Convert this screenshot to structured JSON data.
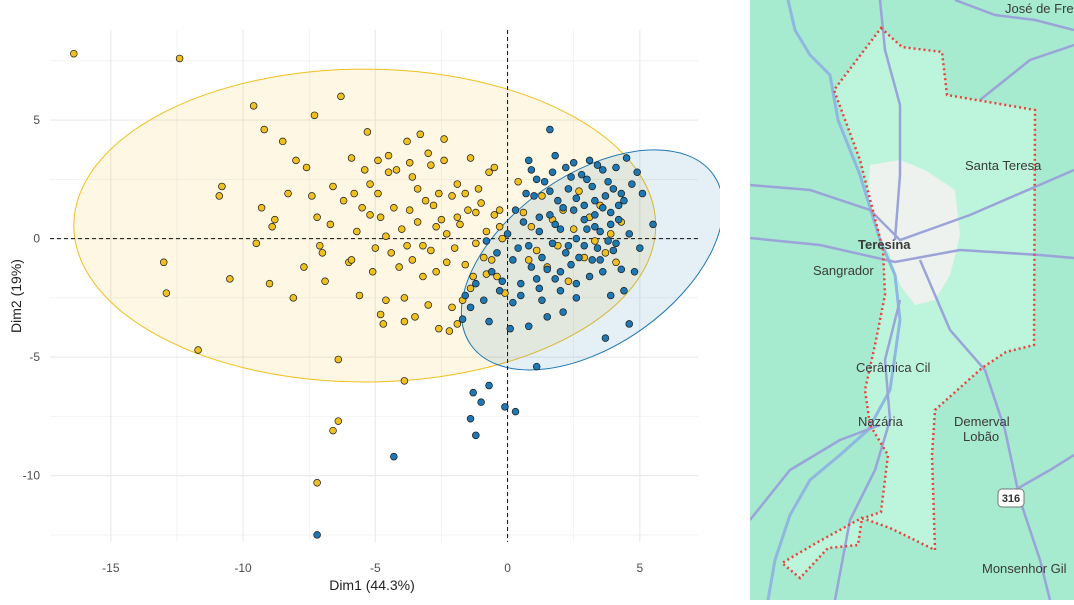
{
  "chart_data": {
    "type": "scatter",
    "xlabel": "Dim1 (44.3%)",
    "ylabel": "Dim2 (19%)",
    "xlim": [
      -17.3,
      7.2
    ],
    "ylim": [
      -12.8,
      8.8
    ],
    "xticks": [
      -15,
      -10,
      -5,
      0,
      5
    ],
    "xtick_labels": [
      "-15",
      "-10",
      "-5",
      "0",
      "5"
    ],
    "yticks": [
      -10,
      -5,
      0,
      5
    ],
    "ytick_labels": [
      "-10",
      "-5",
      "0",
      "5"
    ],
    "grid": true,
    "reference_lines": {
      "x": 0,
      "y": 0,
      "style": "dashed"
    },
    "series": [
      {
        "color": "#F0C020",
        "ellipse": {
          "center": [
            -5.4,
            0.55
          ],
          "rx": 11.0,
          "ry": 6.6,
          "angle": 0
        },
        "points": [
          [
            -16.4,
            7.8
          ],
          [
            -12.4,
            7.6
          ],
          [
            -13.0,
            -1.0
          ],
          [
            -12.9,
            -2.3
          ],
          [
            -11.7,
            -4.7
          ],
          [
            -10.9,
            1.8
          ],
          [
            -10.8,
            2.2
          ],
          [
            -10.5,
            -1.7
          ],
          [
            -9.6,
            5.6
          ],
          [
            -9.2,
            4.6
          ],
          [
            -9.5,
            -0.2
          ],
          [
            -9.3,
            1.3
          ],
          [
            -9.0,
            -1.9
          ],
          [
            -8.9,
            0.5
          ],
          [
            -8.8,
            0.8
          ],
          [
            -8.5,
            4.1
          ],
          [
            -8.3,
            1.9
          ],
          [
            -8.1,
            -2.5
          ],
          [
            -8.0,
            3.3
          ],
          [
            -7.6,
            3.0
          ],
          [
            -7.4,
            1.8
          ],
          [
            -7.2,
            0.9
          ],
          [
            -7.3,
            5.2
          ],
          [
            -7.1,
            -0.3
          ],
          [
            -7.0,
            -0.6
          ],
          [
            -6.9,
            -1.8
          ],
          [
            -6.6,
            2.2
          ],
          [
            -6.3,
            6.0
          ],
          [
            -6.0,
            -1.0
          ],
          [
            -5.9,
            3.4
          ],
          [
            -5.8,
            1.9
          ],
          [
            -5.7,
            0.3
          ],
          [
            -5.6,
            -2.4
          ],
          [
            -5.3,
            4.5
          ],
          [
            -5.2,
            1.0
          ],
          [
            -5.2,
            2.3
          ],
          [
            -5.0,
            -0.4
          ],
          [
            -4.9,
            1.9
          ],
          [
            -4.7,
            -3.6
          ],
          [
            -4.6,
            0.1
          ],
          [
            -4.5,
            2.8
          ],
          [
            -4.4,
            -0.6
          ],
          [
            -4.2,
            2.9
          ],
          [
            -4.1,
            -1.2
          ],
          [
            -3.9,
            -2.5
          ],
          [
            -3.8,
            -0.3
          ],
          [
            -3.7,
            1.2
          ],
          [
            -3.6,
            2.6
          ],
          [
            -3.5,
            -3.3
          ],
          [
            -3.4,
            0.7
          ],
          [
            -3.3,
            4.4
          ],
          [
            -3.2,
            -1.6
          ],
          [
            -3.1,
            1.6
          ],
          [
            -3.0,
            -2.8
          ],
          [
            -3.0,
            3.6
          ],
          [
            -2.9,
            -0.5
          ],
          [
            -2.8,
            1.4
          ],
          [
            -2.6,
            -3.8
          ],
          [
            -2.5,
            0.8
          ],
          [
            -2.4,
            3.3
          ],
          [
            -2.3,
            -1.0
          ],
          [
            -2.2,
            -3.9
          ],
          [
            -2.1,
            1.8
          ],
          [
            -2.0,
            -0.4
          ],
          [
            -1.9,
            2.3
          ],
          [
            -1.8,
            0.6
          ],
          [
            -1.7,
            -2.6
          ],
          [
            -1.6,
            -1.1
          ],
          [
            -1.5,
            1.2
          ],
          [
            -1.4,
            3.4
          ],
          [
            -1.3,
            -1.6
          ],
          [
            -1.2,
            -0.2
          ],
          [
            -1.1,
            2.1
          ],
          [
            -1.0,
            1.5
          ],
          [
            -0.9,
            -0.8
          ],
          [
            -0.8,
            0.3
          ],
          [
            -0.7,
            2.8
          ],
          [
            -0.6,
            -0.9
          ],
          [
            -0.5,
            3.0
          ],
          [
            -0.4,
            -1.6
          ],
          [
            -0.3,
            1.2
          ],
          [
            -0.2,
            0.0
          ],
          [
            -0.1,
            -2.3
          ],
          [
            -0.5,
            1.0
          ],
          [
            -3.9,
            -6.0
          ],
          [
            -6.4,
            -7.7
          ],
          [
            -6.6,
            -8.1
          ],
          [
            -7.2,
            -10.3
          ],
          [
            -6.4,
            -5.1
          ],
          [
            -4.8,
            -3.2
          ],
          [
            -1.9,
            -3.6
          ],
          [
            0.4,
            2.4
          ],
          [
            0.6,
            1.1
          ],
          [
            0.8,
            -0.9
          ],
          [
            0.9,
            0.5
          ],
          [
            1.1,
            -0.5
          ],
          [
            1.3,
            1.8
          ],
          [
            1.5,
            -1.2
          ],
          [
            1.7,
            0.8
          ],
          [
            1.9,
            -0.3
          ],
          [
            2.1,
            1.2
          ],
          [
            2.3,
            -1.8
          ],
          [
            2.5,
            0.4
          ],
          [
            2.7,
            2.0
          ],
          [
            2.9,
            -0.8
          ],
          [
            3.1,
            0.9
          ],
          [
            3.3,
            -0.1
          ],
          [
            3.5,
            1.4
          ],
          [
            3.7,
            -0.6
          ],
          [
            3.9,
            0.2
          ],
          [
            4.1,
            -1.0
          ],
          [
            4.3,
            0.7
          ],
          [
            -5.5,
            1.3
          ],
          [
            -4.3,
            1.3
          ],
          [
            -3.6,
            -0.9
          ],
          [
            -2.7,
            -1.4
          ],
          [
            -4.8,
            0.9
          ],
          [
            -5.9,
            -0.9
          ],
          [
            -6.7,
            0.6
          ],
          [
            -7.7,
            -1.2
          ],
          [
            -3.4,
            2.1
          ],
          [
            -2.6,
            1.9
          ],
          [
            -1.6,
            1.9
          ],
          [
            -4.0,
            0.4
          ],
          [
            -3.2,
            -0.3
          ],
          [
            -2.3,
            0.2
          ],
          [
            -4.5,
            3.5
          ],
          [
            -3.7,
            3.2
          ],
          [
            -2.9,
            3.1
          ],
          [
            -6.2,
            1.6
          ],
          [
            -5.1,
            -1.4
          ],
          [
            -4.6,
            -2.6
          ],
          [
            -3.9,
            -3.5
          ],
          [
            -2.1,
            -2.9
          ],
          [
            -1.4,
            -2.1
          ],
          [
            -0.8,
            -1.5
          ],
          [
            -5.4,
            2.9
          ],
          [
            -4.9,
            3.3
          ],
          [
            -2.4,
            4.2
          ],
          [
            -3.8,
            4.1
          ],
          [
            -1.9,
            0.9
          ],
          [
            -2.7,
            0.5
          ],
          [
            -1.2,
            1.1
          ],
          [
            -0.3,
            0.5
          ]
        ]
      },
      {
        "color": "#1E78B4",
        "ellipse": {
          "center": [
            3.2,
            -0.9
          ],
          "rx": 5.6,
          "ry": 3.6,
          "angle": -35
        },
        "points": [
          [
            1.6,
            4.6
          ],
          [
            0.8,
            3.3
          ],
          [
            4.5,
            3.4
          ],
          [
            4.9,
            2.8
          ],
          [
            4.7,
            2.3
          ],
          [
            5.1,
            1.9
          ],
          [
            5.5,
            0.6
          ],
          [
            5.0,
            -0.4
          ],
          [
            4.8,
            -1.4
          ],
          [
            4.4,
            -2.2
          ],
          [
            3.9,
            -2.4
          ],
          [
            3.7,
            -4.2
          ],
          [
            4.6,
            -3.6
          ],
          [
            1.1,
            -5.4
          ],
          [
            -0.7,
            -6.2
          ],
          [
            -1.3,
            -6.5
          ],
          [
            -1.0,
            -6.9
          ],
          [
            -1.4,
            -7.6
          ],
          [
            -1.2,
            -8.3
          ],
          [
            -0.1,
            -7.1
          ],
          [
            0.3,
            -7.3
          ],
          [
            -4.3,
            -9.2
          ],
          [
            -7.2,
            -12.5
          ],
          [
            -1.7,
            -3.4
          ],
          [
            -1.4,
            -2.9
          ],
          [
            -0.7,
            -3.5
          ],
          [
            -0.3,
            -2.2
          ],
          [
            0.1,
            -3.8
          ],
          [
            0.5,
            -2.4
          ],
          [
            0.8,
            -3.7
          ],
          [
            1.2,
            -2.1
          ],
          [
            1.5,
            -3.3
          ],
          [
            1.8,
            -1.7
          ],
          [
            2.1,
            -3.1
          ],
          [
            2.4,
            -1.1
          ],
          [
            2.6,
            -2.5
          ],
          [
            2.9,
            -0.3
          ],
          [
            3.1,
            -1.6
          ],
          [
            3.3,
            0.5
          ],
          [
            3.5,
            -0.9
          ],
          [
            3.6,
            1.3
          ],
          [
            3.8,
            -0.1
          ],
          [
            4.0,
            2.1
          ],
          [
            4.2,
            0.8
          ],
          [
            4.3,
            -1.3
          ],
          [
            4.4,
            1.6
          ],
          [
            4.6,
            0.2
          ],
          [
            0.4,
            -0.4
          ],
          [
            0.6,
            0.7
          ],
          [
            0.9,
            -1.2
          ],
          [
            1.0,
            1.8
          ],
          [
            1.2,
            0.3
          ],
          [
            1.3,
            -0.8
          ],
          [
            1.4,
            2.4
          ],
          [
            1.6,
            1.0
          ],
          [
            1.7,
            -0.2
          ],
          [
            1.9,
            1.6
          ],
          [
            2.0,
            0.4
          ],
          [
            2.2,
            -0.6
          ],
          [
            2.3,
            2.1
          ],
          [
            2.5,
            1.2
          ],
          [
            2.6,
            0.0
          ],
          [
            2.8,
            2.7
          ],
          [
            2.9,
            1.4
          ],
          [
            3.0,
            0.4
          ],
          [
            3.2,
            2.2
          ],
          [
            3.3,
            1.0
          ],
          [
            3.4,
            -0.4
          ],
          [
            3.6,
            2.9
          ],
          [
            3.7,
            1.8
          ],
          [
            3.9,
            0.6
          ],
          [
            4.0,
            -0.5
          ],
          [
            4.1,
            3.0
          ],
          [
            4.3,
            1.9
          ],
          [
            -0.6,
            -1.4
          ],
          [
            -0.4,
            -0.6
          ],
          [
            -0.2,
            -1.8
          ],
          [
            0.0,
            0.2
          ],
          [
            0.2,
            -0.9
          ],
          [
            0.3,
            1.2
          ],
          [
            0.5,
            -1.9
          ],
          [
            0.7,
            1.9
          ],
          [
            0.8,
            -0.3
          ],
          [
            1.1,
            -1.7
          ],
          [
            1.2,
            0.9
          ],
          [
            1.5,
            -1.3
          ],
          [
            1.6,
            2.0
          ],
          [
            1.8,
            0.6
          ],
          [
            2.0,
            -1.4
          ],
          [
            2.1,
            1.3
          ],
          [
            2.3,
            -0.3
          ],
          [
            2.4,
            2.6
          ],
          [
            2.6,
            1.7
          ],
          [
            2.7,
            -0.8
          ],
          [
            2.9,
            0.8
          ],
          [
            3.0,
            2.5
          ],
          [
            3.2,
            -0.9
          ],
          [
            3.3,
            1.6
          ],
          [
            3.5,
            0.3
          ],
          [
            3.6,
            -1.4
          ],
          [
            3.8,
            2.4
          ],
          [
            3.9,
            1.1
          ],
          [
            4.1,
            -0.2
          ],
          [
            4.2,
            1.4
          ],
          [
            2.2,
            3.0
          ],
          [
            1.7,
            2.8
          ],
          [
            1.1,
            2.5
          ],
          [
            2.5,
            3.2
          ],
          [
            3.1,
            3.3
          ],
          [
            3.4,
            3.1
          ],
          [
            0.9,
            2.9
          ],
          [
            1.8,
            3.5
          ],
          [
            -1.2,
            -1.9
          ],
          [
            -0.9,
            -2.6
          ],
          [
            0.2,
            -2.7
          ],
          [
            -1.6,
            -2.4
          ],
          [
            -0.8,
            -0.1
          ],
          [
            1.3,
            -2.6
          ],
          [
            2.0,
            -2.2
          ],
          [
            2.6,
            -1.9
          ]
        ]
      }
    ]
  },
  "map": {
    "labels": {
      "top_town": "José de Fre",
      "santa_teresa": "Santa Teresa",
      "teresina": "Teresina",
      "sangrador": "Sangrador",
      "ceramica": "Cerâmica Cil",
      "nazaria": "Nazária",
      "demerval": "Demerval",
      "lobao": "Lobão",
      "highway": "316",
      "monsenhor": "Monsenhor Gil"
    },
    "colors": {
      "land": "#A6EAD0",
      "region": "#BDF5DC",
      "river": "#8FB7E0",
      "road": "#9AA4D8",
      "boundary": "#E8433A",
      "urban": "#EEF2EE"
    }
  }
}
